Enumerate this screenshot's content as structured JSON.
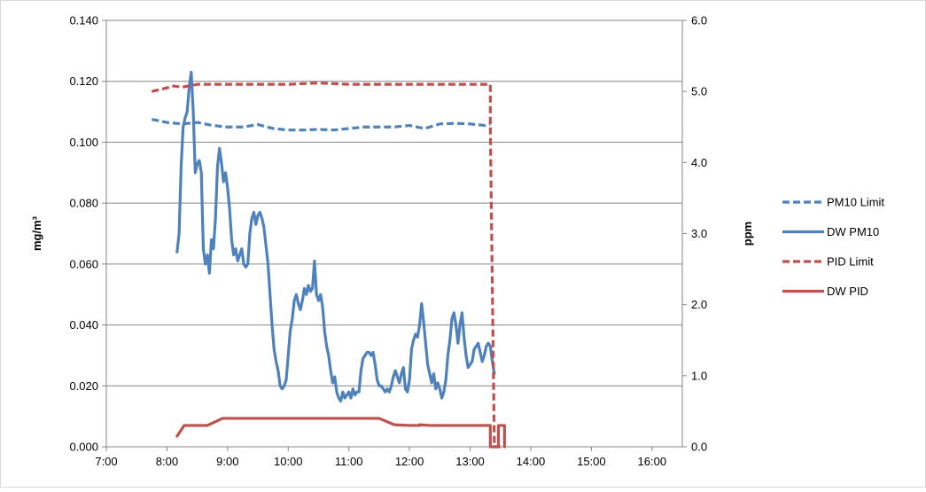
{
  "chart_data": {
    "type": "line",
    "x_ticks": [
      "7:00",
      "8:00",
      "9:00",
      "10:00",
      "11:00",
      "12:00",
      "13:00",
      "14:00",
      "15:00",
      "16:00"
    ],
    "x_range": [
      "7:00",
      "16:30"
    ],
    "y_left": {
      "label": "mg/m³",
      "range": [
        0,
        0.14
      ],
      "ticks": [
        "0.000",
        "0.020",
        "0.040",
        "0.060",
        "0.080",
        "0.100",
        "0.120",
        "0.140"
      ]
    },
    "y_right": {
      "label": "ppm",
      "range": [
        0,
        6
      ],
      "ticks": [
        "0.0",
        "1.0",
        "2.0",
        "3.0",
        "4.0",
        "5.0",
        "6.0"
      ]
    },
    "grid": "horizontal",
    "legend_position": "right",
    "colors": {
      "pm10": "#4F81BD",
      "pid": "#C0504D",
      "grid": "#868686",
      "axis": "#868686"
    },
    "series": [
      {
        "name": "PM10 Limit",
        "axis": "left",
        "style": "dashed",
        "color": "#4F81BD",
        "points": [
          [
            "7:45",
            0.1075
          ],
          [
            "8:00",
            0.1065
          ],
          [
            "8:15",
            0.106
          ],
          [
            "8:30",
            0.1065
          ],
          [
            "8:45",
            0.1055
          ],
          [
            "9:00",
            0.105
          ],
          [
            "9:15",
            0.105
          ],
          [
            "9:30",
            0.1058
          ],
          [
            "9:45",
            0.1045
          ],
          [
            "10:00",
            0.104
          ],
          [
            "10:15",
            0.104
          ],
          [
            "10:30",
            0.1042
          ],
          [
            "10:45",
            0.104
          ],
          [
            "11:00",
            0.1045
          ],
          [
            "11:15",
            0.105
          ],
          [
            "11:30",
            0.105
          ],
          [
            "11:45",
            0.105
          ],
          [
            "12:00",
            0.1055
          ],
          [
            "12:15",
            0.1045
          ],
          [
            "12:30",
            0.106
          ],
          [
            "12:45",
            0.1062
          ],
          [
            "13:00",
            0.106
          ],
          [
            "13:15",
            0.1055
          ],
          [
            "13:20",
            0.106
          ]
        ]
      },
      {
        "name": "DW PM10",
        "axis": "left",
        "style": "solid",
        "color": "#4F81BD",
        "points": [
          [
            "8:10",
            0.064
          ],
          [
            "8:12",
            0.07
          ],
          [
            "8:14",
            0.092
          ],
          [
            "8:16",
            0.105
          ],
          [
            "8:18",
            0.108
          ],
          [
            "8:20",
            0.11
          ],
          [
            "8:22",
            0.118
          ],
          [
            "8:24",
            0.123
          ],
          [
            "8:26",
            0.11
          ],
          [
            "8:28",
            0.09
          ],
          [
            "8:30",
            0.093
          ],
          [
            "8:32",
            0.094
          ],
          [
            "8:34",
            0.09
          ],
          [
            "8:36",
            0.065
          ],
          [
            "8:38",
            0.06
          ],
          [
            "8:40",
            0.063
          ],
          [
            "8:42",
            0.057
          ],
          [
            "8:44",
            0.068
          ],
          [
            "8:46",
            0.065
          ],
          [
            "8:48",
            0.075
          ],
          [
            "8:50",
            0.092
          ],
          [
            "8:52",
            0.098
          ],
          [
            "8:54",
            0.093
          ],
          [
            "8:56",
            0.087
          ],
          [
            "8:58",
            0.09
          ],
          [
            "9:00",
            0.085
          ],
          [
            "9:02",
            0.078
          ],
          [
            "9:04",
            0.068
          ],
          [
            "9:06",
            0.063
          ],
          [
            "9:08",
            0.065
          ],
          [
            "9:10",
            0.061
          ],
          [
            "9:12",
            0.063
          ],
          [
            "9:14",
            0.065
          ],
          [
            "9:16",
            0.06
          ],
          [
            "9:18",
            0.059
          ],
          [
            "9:20",
            0.06
          ],
          [
            "9:22",
            0.07
          ],
          [
            "9:24",
            0.075
          ],
          [
            "9:26",
            0.077
          ],
          [
            "9:28",
            0.073
          ],
          [
            "9:30",
            0.076
          ],
          [
            "9:32",
            0.077
          ],
          [
            "9:34",
            0.075
          ],
          [
            "9:36",
            0.072
          ],
          [
            "9:38",
            0.066
          ],
          [
            "9:40",
            0.06
          ],
          [
            "9:42",
            0.05
          ],
          [
            "9:44",
            0.04
          ],
          [
            "9:46",
            0.032
          ],
          [
            "9:48",
            0.028
          ],
          [
            "9:50",
            0.025
          ],
          [
            "9:52",
            0.02
          ],
          [
            "9:54",
            0.019
          ],
          [
            "9:56",
            0.02
          ],
          [
            "9:58",
            0.022
          ],
          [
            "10:00",
            0.03
          ],
          [
            "10:02",
            0.038
          ],
          [
            "10:04",
            0.042
          ],
          [
            "10:06",
            0.048
          ],
          [
            "10:08",
            0.05
          ],
          [
            "10:10",
            0.047
          ],
          [
            "10:12",
            0.045
          ],
          [
            "10:14",
            0.048
          ],
          [
            "10:16",
            0.052
          ],
          [
            "10:18",
            0.05
          ],
          [
            "10:20",
            0.053
          ],
          [
            "10:22",
            0.051
          ],
          [
            "10:24",
            0.052
          ],
          [
            "10:26",
            0.061
          ],
          [
            "10:28",
            0.05
          ],
          [
            "10:30",
            0.048
          ],
          [
            "10:32",
            0.05
          ],
          [
            "10:34",
            0.046
          ],
          [
            "10:36",
            0.038
          ],
          [
            "10:38",
            0.033
          ],
          [
            "10:40",
            0.03
          ],
          [
            "10:42",
            0.025
          ],
          [
            "10:44",
            0.021
          ],
          [
            "10:46",
            0.023
          ],
          [
            "10:48",
            0.018
          ],
          [
            "10:50",
            0.016
          ],
          [
            "10:52",
            0.015
          ],
          [
            "10:54",
            0.018
          ],
          [
            "10:56",
            0.016
          ],
          [
            "10:58",
            0.017
          ],
          [
            "11:00",
            0.018
          ],
          [
            "11:02",
            0.016
          ],
          [
            "11:04",
            0.019
          ],
          [
            "11:06",
            0.017
          ],
          [
            "11:08",
            0.018
          ],
          [
            "11:10",
            0.018
          ],
          [
            "11:12",
            0.025
          ],
          [
            "11:14",
            0.029
          ],
          [
            "11:16",
            0.03
          ],
          [
            "11:18",
            0.031
          ],
          [
            "11:20",
            0.031
          ],
          [
            "11:22",
            0.03
          ],
          [
            "11:24",
            0.031
          ],
          [
            "11:26",
            0.027
          ],
          [
            "11:28",
            0.022
          ],
          [
            "11:30",
            0.02
          ],
          [
            "11:32",
            0.02
          ],
          [
            "11:34",
            0.019
          ],
          [
            "11:36",
            0.018
          ],
          [
            "11:38",
            0.019
          ],
          [
            "11:40",
            0.018
          ],
          [
            "11:42",
            0.02
          ],
          [
            "11:44",
            0.023
          ],
          [
            "11:46",
            0.025
          ],
          [
            "11:48",
            0.023
          ],
          [
            "11:50",
            0.021
          ],
          [
            "11:52",
            0.024
          ],
          [
            "11:54",
            0.026
          ],
          [
            "11:56",
            0.019
          ],
          [
            "11:58",
            0.018
          ],
          [
            "12:00",
            0.022
          ],
          [
            "12:02",
            0.032
          ],
          [
            "12:04",
            0.035
          ],
          [
            "12:06",
            0.037
          ],
          [
            "12:08",
            0.036
          ],
          [
            "12:10",
            0.04
          ],
          [
            "12:12",
            0.047
          ],
          [
            "12:14",
            0.041
          ],
          [
            "12:16",
            0.034
          ],
          [
            "12:18",
            0.027
          ],
          [
            "12:20",
            0.024
          ],
          [
            "12:22",
            0.021
          ],
          [
            "12:24",
            0.024
          ],
          [
            "12:26",
            0.019
          ],
          [
            "12:28",
            0.021
          ],
          [
            "12:30",
            0.019
          ],
          [
            "12:32",
            0.016
          ],
          [
            "12:34",
            0.018
          ],
          [
            "12:36",
            0.022
          ],
          [
            "12:38",
            0.03
          ],
          [
            "12:40",
            0.035
          ],
          [
            "12:42",
            0.042
          ],
          [
            "12:44",
            0.044
          ],
          [
            "12:46",
            0.04
          ],
          [
            "12:48",
            0.034
          ],
          [
            "12:50",
            0.04
          ],
          [
            "12:52",
            0.044
          ],
          [
            "12:54",
            0.036
          ],
          [
            "12:56",
            0.03
          ],
          [
            "12:58",
            0.026
          ],
          [
            "13:00",
            0.027
          ],
          [
            "13:02",
            0.028
          ],
          [
            "13:04",
            0.032
          ],
          [
            "13:06",
            0.033
          ],
          [
            "13:08",
            0.034
          ],
          [
            "13:10",
            0.031
          ],
          [
            "13:12",
            0.028
          ],
          [
            "13:14",
            0.03
          ],
          [
            "13:16",
            0.033
          ],
          [
            "13:18",
            0.034
          ],
          [
            "13:20",
            0.033
          ],
          [
            "13:22",
            0.028
          ],
          [
            "13:24",
            0.024
          ]
        ]
      },
      {
        "name": "PID Limit",
        "axis": "right",
        "style": "dashed",
        "color": "#C0504D",
        "points": [
          [
            "7:45",
            5.0
          ],
          [
            "8:00",
            5.05
          ],
          [
            "8:05",
            5.08
          ],
          [
            "8:15",
            5.06
          ],
          [
            "8:30",
            5.1
          ],
          [
            "9:00",
            5.1
          ],
          [
            "10:00",
            5.1
          ],
          [
            "10:30",
            5.12
          ],
          [
            "11:00",
            5.1
          ],
          [
            "12:00",
            5.1
          ],
          [
            "13:00",
            5.1
          ],
          [
            "13:20",
            5.1
          ],
          [
            "13:20",
            4.5
          ],
          [
            "13:24",
            0.0
          ],
          [
            "13:26",
            0.0
          ],
          [
            "13:30",
            0.0
          ]
        ]
      },
      {
        "name": "DW PID",
        "axis": "right",
        "style": "solid",
        "color": "#C0504D",
        "points": [
          [
            "8:10",
            0.15
          ],
          [
            "8:17",
            0.3
          ],
          [
            "8:40",
            0.3
          ],
          [
            "8:55",
            0.4
          ],
          [
            "11:30",
            0.4
          ],
          [
            "11:45",
            0.31
          ],
          [
            "12:00",
            0.3
          ],
          [
            "12:10",
            0.3
          ],
          [
            "12:10",
            0.31
          ],
          [
            "12:20",
            0.3
          ],
          [
            "13:20",
            0.3
          ],
          [
            "13:20",
            0.0
          ],
          [
            "13:28",
            0.0
          ],
          [
            "13:28",
            0.3
          ],
          [
            "13:34",
            0.3
          ],
          [
            "13:34",
            0.0
          ]
        ]
      }
    ]
  }
}
